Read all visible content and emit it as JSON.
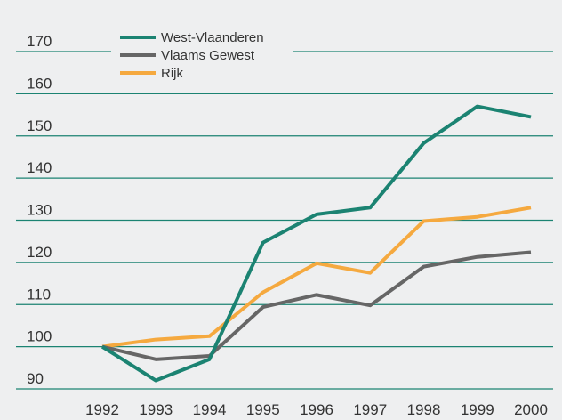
{
  "chart_data": {
    "type": "line",
    "categories": [
      "1992",
      "1993",
      "1994",
      "1995",
      "1996",
      "1997",
      "1998",
      "1999",
      "2000"
    ],
    "series": [
      {
        "name": "West-Vlaanderen",
        "color": "#1b8372",
        "values": [
          100,
          92,
          97,
          124.7,
          131.4,
          133,
          148.3,
          157,
          154.5
        ]
      },
      {
        "name": "Vlaams Gewest",
        "color": "#666666",
        "values": [
          100,
          97,
          97.8,
          109.4,
          112.3,
          109.8,
          119,
          121.3,
          122.4
        ]
      },
      {
        "name": "Rijk",
        "color": "#f5a93f",
        "values": [
          100,
          101.7,
          102.5,
          112.9,
          119.8,
          117.5,
          129.8,
          130.8,
          133
        ]
      }
    ],
    "ylim": [
      90,
      170
    ],
    "yticks": [
      90,
      100,
      110,
      120,
      130,
      140,
      150,
      160,
      170
    ],
    "grid": true
  }
}
